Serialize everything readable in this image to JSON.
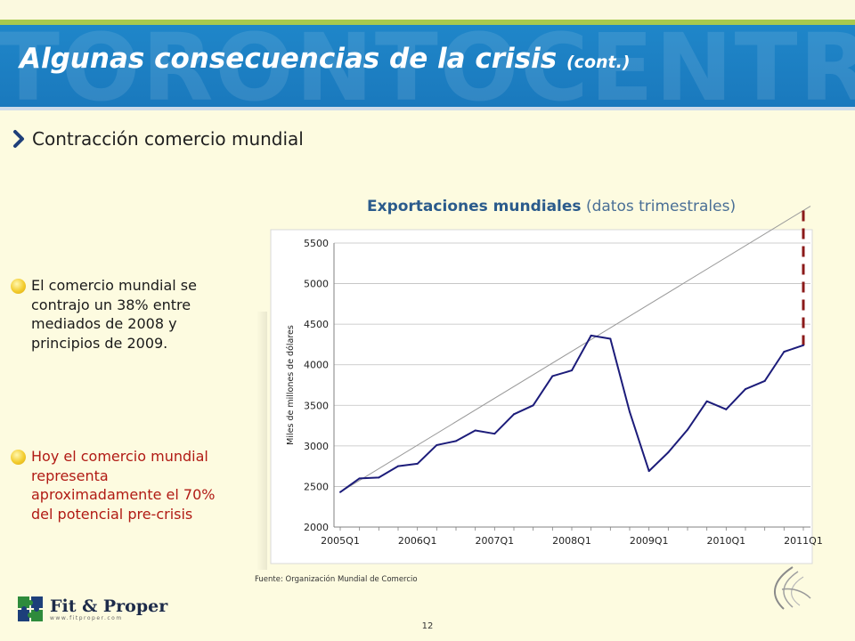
{
  "header": {
    "watermark": "TORONTOCENTRE",
    "title": "Algunas consecuencias de la crisis",
    "title_suffix": "(cont.)"
  },
  "section": {
    "heading": "Contracción comercio mundial"
  },
  "bullets": [
    {
      "text": "El comercio mundial se contrajo un 38% entre mediados de 2008 y principios de 2009.",
      "color": "#1a1a1a"
    },
    {
      "text": "Hoy el comercio mundial representa aproximadamente el 70% del potencial pre-crisis",
      "color": "#b11a14"
    }
  ],
  "chart_title": {
    "bold": "Exportaciones mundiales",
    "rest": "(datos trimestrales)"
  },
  "chart_data": {
    "type": "line",
    "ylabel": "Miles de millones de dólares",
    "ylim": [
      2000,
      5500
    ],
    "yticks": [
      "2000",
      "2500",
      "3000",
      "3500",
      "4000",
      "4500",
      "5000",
      "5500"
    ],
    "xticks": [
      "2005Q1",
      "2006Q1",
      "2007Q1",
      "2008Q1",
      "2009Q1",
      "2010Q1",
      "2011Q1"
    ],
    "x": [
      "2005Q1",
      "2005Q2",
      "2005Q3",
      "2005Q4",
      "2006Q1",
      "2006Q2",
      "2006Q3",
      "2006Q4",
      "2007Q1",
      "2007Q2",
      "2007Q3",
      "2007Q4",
      "2008Q1",
      "2008Q2",
      "2008Q3",
      "2008Q4",
      "2009Q1",
      "2009Q2",
      "2009Q3",
      "2009Q4",
      "2010Q1",
      "2010Q2",
      "2010Q3",
      "2010Q4",
      "2011Q1"
    ],
    "series": [
      {
        "values": [
          2430,
          2600,
          2610,
          2750,
          2780,
          3010,
          3060,
          3190,
          3150,
          3390,
          3500,
          3860,
          3930,
          4360,
          4320,
          3420,
          2690,
          2920,
          3200,
          3550,
          3450,
          3700,
          3800,
          4160,
          4240
        ],
        "color": "#1c1c7a"
      }
    ],
    "trend": {
      "from": [
        "2005Q1",
        2430
      ],
      "to": [
        "2011Q1",
        5900
      ],
      "color": "#9a9a9a"
    },
    "gap_marker": {
      "x": "2011Q1",
      "from": 4240,
      "to": 5900,
      "color": "#8b1a1a"
    },
    "grid": true
  },
  "source": "Fuente: Organización Mundial de Comercio",
  "page_number": "12",
  "logo": {
    "name": "Fit & Proper",
    "url": "www.fitproper.com"
  }
}
